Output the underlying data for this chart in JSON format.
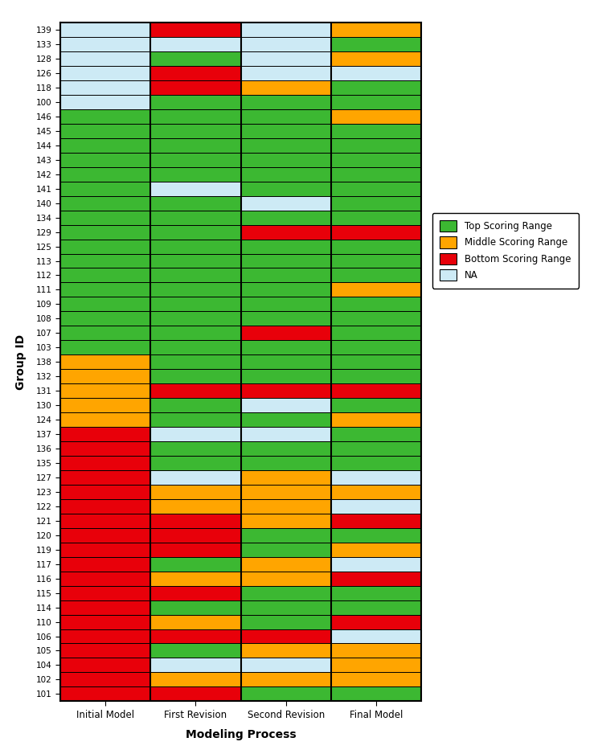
{
  "groups": [
    "139",
    "133",
    "128",
    "126",
    "118",
    "100",
    "146",
    "145",
    "144",
    "143",
    "142",
    "141",
    "140",
    "134",
    "129",
    "125",
    "113",
    "112",
    "111",
    "109",
    "108",
    "107",
    "103",
    "138",
    "132",
    "131",
    "130",
    "124",
    "137",
    "136",
    "135",
    "127",
    "123",
    "122",
    "121",
    "120",
    "119",
    "117",
    "116",
    "115",
    "114",
    "110",
    "106",
    "105",
    "104",
    "102",
    "101"
  ],
  "columns": [
    "Initial Model",
    "First Revision",
    "Second Revision",
    "Final Model"
  ],
  "colors": {
    "G": "#3CB832",
    "O": "#FFA500",
    "R": "#E8000A",
    "N": "#CDEAF5"
  },
  "data": {
    "139": [
      "N",
      "R",
      "N",
      "O"
    ],
    "133": [
      "N",
      "N",
      "N",
      "G"
    ],
    "128": [
      "N",
      "G",
      "N",
      "O"
    ],
    "126": [
      "N",
      "R",
      "N",
      "N"
    ],
    "118": [
      "N",
      "R",
      "O",
      "G"
    ],
    "100": [
      "N",
      "G",
      "G",
      "G"
    ],
    "146": [
      "G",
      "G",
      "G",
      "O"
    ],
    "145": [
      "G",
      "G",
      "G",
      "G"
    ],
    "144": [
      "G",
      "G",
      "G",
      "G"
    ],
    "143": [
      "G",
      "G",
      "G",
      "G"
    ],
    "142": [
      "G",
      "G",
      "G",
      "G"
    ],
    "141": [
      "G",
      "N",
      "G",
      "G"
    ],
    "140": [
      "G",
      "G",
      "N",
      "G"
    ],
    "134": [
      "G",
      "G",
      "G",
      "G"
    ],
    "129": [
      "G",
      "G",
      "R",
      "R"
    ],
    "125": [
      "G",
      "G",
      "G",
      "G"
    ],
    "113": [
      "G",
      "G",
      "G",
      "G"
    ],
    "112": [
      "G",
      "G",
      "G",
      "G"
    ],
    "111": [
      "G",
      "G",
      "G",
      "O"
    ],
    "109": [
      "G",
      "G",
      "G",
      "G"
    ],
    "108": [
      "G",
      "G",
      "G",
      "G"
    ],
    "107": [
      "G",
      "G",
      "R",
      "G"
    ],
    "103": [
      "G",
      "G",
      "G",
      "G"
    ],
    "138": [
      "O",
      "G",
      "G",
      "G"
    ],
    "132": [
      "O",
      "G",
      "G",
      "G"
    ],
    "131": [
      "O",
      "R",
      "R",
      "R"
    ],
    "130": [
      "O",
      "G",
      "N",
      "G"
    ],
    "124": [
      "O",
      "G",
      "G",
      "O"
    ],
    "137": [
      "R",
      "N",
      "N",
      "G"
    ],
    "136": [
      "R",
      "G",
      "G",
      "G"
    ],
    "135": [
      "R",
      "G",
      "G",
      "G"
    ],
    "127": [
      "R",
      "N",
      "O",
      "N"
    ],
    "123": [
      "R",
      "O",
      "O",
      "O"
    ],
    "122": [
      "R",
      "O",
      "O",
      "N"
    ],
    "121": [
      "R",
      "R",
      "O",
      "R"
    ],
    "120": [
      "R",
      "R",
      "G",
      "G"
    ],
    "119": [
      "R",
      "R",
      "G",
      "O"
    ],
    "117": [
      "R",
      "G",
      "O",
      "N"
    ],
    "116": [
      "R",
      "O",
      "O",
      "R"
    ],
    "115": [
      "R",
      "R",
      "G",
      "G"
    ],
    "114": [
      "R",
      "G",
      "G",
      "G"
    ],
    "110": [
      "R",
      "O",
      "G",
      "R"
    ],
    "106": [
      "R",
      "R",
      "R",
      "N"
    ],
    "105": [
      "R",
      "G",
      "O",
      "O"
    ],
    "104": [
      "R",
      "N",
      "N",
      "O"
    ],
    "102": [
      "R",
      "O",
      "O",
      "O"
    ],
    "101": [
      "R",
      "R",
      "G",
      "G"
    ]
  },
  "legend_labels": [
    "Top Scoring Range",
    "Middle Scoring Range",
    "Bottom Scoring Range",
    "NA"
  ],
  "legend_colors": [
    "#3CB832",
    "#FFA500",
    "#E8000A",
    "#CDEAF5"
  ],
  "xlabel": "Modeling Process",
  "ylabel": "Group ID"
}
